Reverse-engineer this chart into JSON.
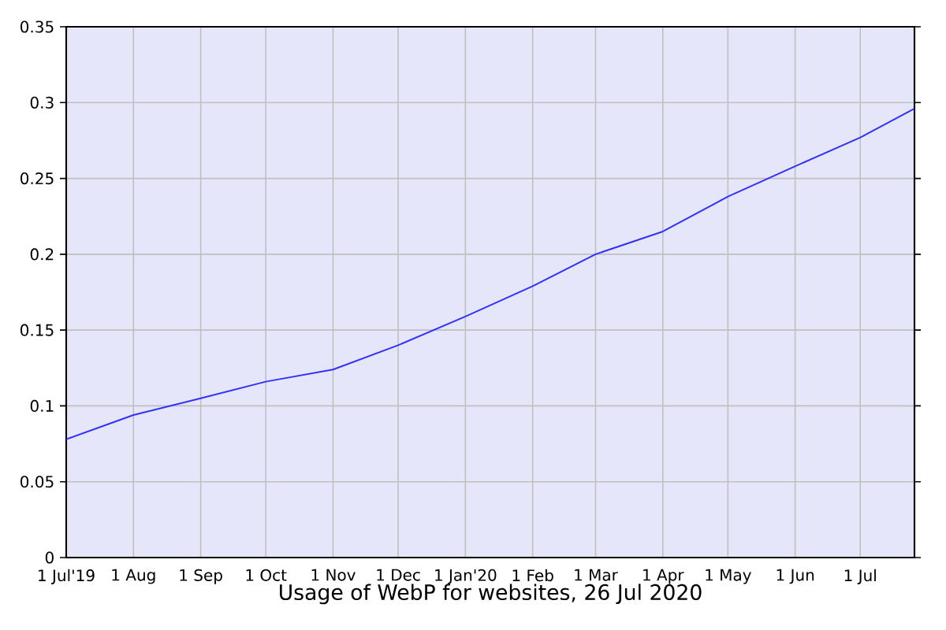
{
  "chart_data": {
    "type": "line",
    "title": "Usage of WebP for websites, 26 Jul 2020",
    "x": [
      "2019-07-01",
      "2019-08-01",
      "2019-09-01",
      "2019-10-01",
      "2019-11-01",
      "2019-12-01",
      "2020-01-01",
      "2020-02-01",
      "2020-03-01",
      "2020-04-01",
      "2020-05-01",
      "2020-06-01",
      "2020-07-01",
      "2020-07-26"
    ],
    "values": [
      0.078,
      0.094,
      0.105,
      0.116,
      0.124,
      0.14,
      0.159,
      0.179,
      0.2,
      0.215,
      0.238,
      0.258,
      0.277,
      0.296
    ],
    "color": "#3030ff",
    "xlim": [
      "2019-07-01",
      "2020-07-26"
    ],
    "ylim": [
      0,
      0.35
    ],
    "xticks": [
      {
        "value": "2019-07-01",
        "label": "1 Jul'19"
      },
      {
        "value": "2019-08-01",
        "label": "1 Aug"
      },
      {
        "value": "2019-09-01",
        "label": "1 Sep"
      },
      {
        "value": "2019-10-01",
        "label": "1 Oct"
      },
      {
        "value": "2019-11-01",
        "label": "1 Nov"
      },
      {
        "value": "2019-12-01",
        "label": "1 Dec"
      },
      {
        "value": "2020-01-01",
        "label": "1 Jan'20"
      },
      {
        "value": "2020-02-01",
        "label": "1 Feb"
      },
      {
        "value": "2020-03-01",
        "label": "1 Mar"
      },
      {
        "value": "2020-04-01",
        "label": "1 Apr"
      },
      {
        "value": "2020-05-01",
        "label": "1 May"
      },
      {
        "value": "2020-06-01",
        "label": "1 Jun"
      },
      {
        "value": "2020-07-01",
        "label": "1 Jul"
      }
    ],
    "yticks": [
      0,
      0.05,
      0.1,
      0.15,
      0.2,
      0.25,
      0.3,
      0.35
    ],
    "grid": true
  }
}
